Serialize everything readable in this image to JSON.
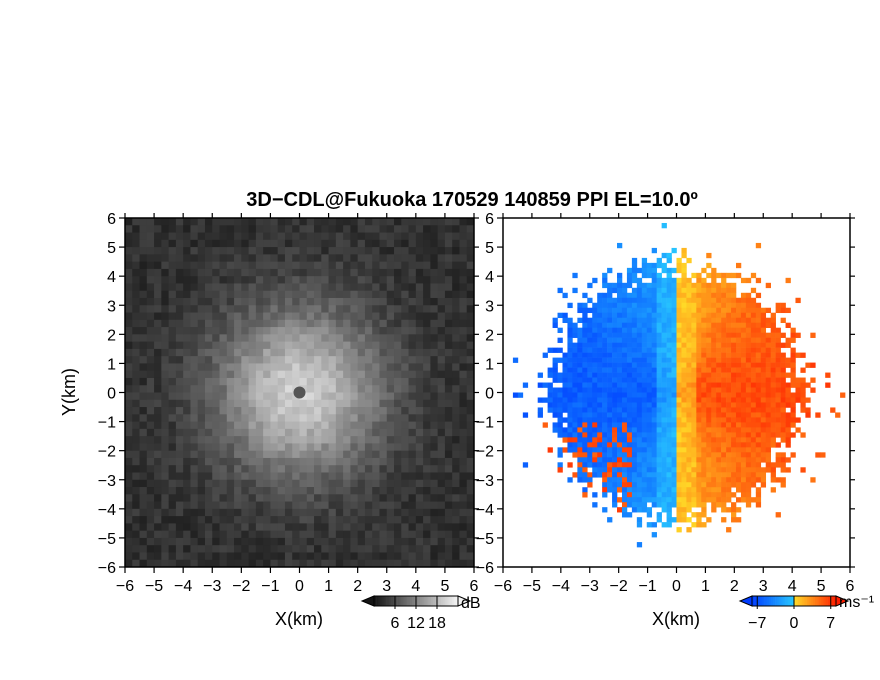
{
  "chart_data": [
    {
      "type": "heatmap",
      "title": "3D−CDL@Fukuoka 170529 140859 PPI EL=10.0º",
      "panel": "reflectivity",
      "xlabel": "X(km)",
      "ylabel": "Y(km)",
      "xlim": [
        -6,
        6
      ],
      "ylim": [
        -6,
        6
      ],
      "xticks": [
        "−6",
        "−5",
        "−4",
        "−3",
        "−2",
        "−1",
        "0",
        "1",
        "2",
        "3",
        "4",
        "5",
        "6"
      ],
      "yticks": [
        "−6",
        "−5",
        "−4",
        "−3",
        "−2",
        "−1",
        "0",
        "1",
        "2",
        "3",
        "4",
        "5",
        "6"
      ],
      "colormap": "grayscale",
      "colorbar": {
        "unit": "dB",
        "ticks": [
          "6",
          "12",
          "18"
        ],
        "range": [
          0,
          24
        ]
      },
      "center_value_db": 20,
      "background_db": 3,
      "echo_radius_km": 4.3
    },
    {
      "type": "heatmap",
      "panel": "doppler_velocity",
      "xlabel": "X(km)",
      "xlim": [
        -6,
        6
      ],
      "ylim": [
        -6,
        6
      ],
      "xticks": [
        "−6",
        "−5",
        "−4",
        "−3",
        "−2",
        "−1",
        "0",
        "1",
        "2",
        "3",
        "4",
        "5",
        "6"
      ],
      "yticks": [
        "−6",
        "−5",
        "−4",
        "−3",
        "−2",
        "−1",
        "0",
        "1",
        "2",
        "3",
        "4",
        "5",
        "6"
      ],
      "colormap": "blue-red diverging",
      "colorbar": {
        "unit": "ms⁻¹",
        "ticks": [
          "−7",
          "0",
          "7"
        ],
        "range": [
          -8,
          8
        ]
      },
      "velocity_west_ms": -6,
      "velocity_east_ms": 6,
      "echo_radius_km": 4.4
    }
  ]
}
